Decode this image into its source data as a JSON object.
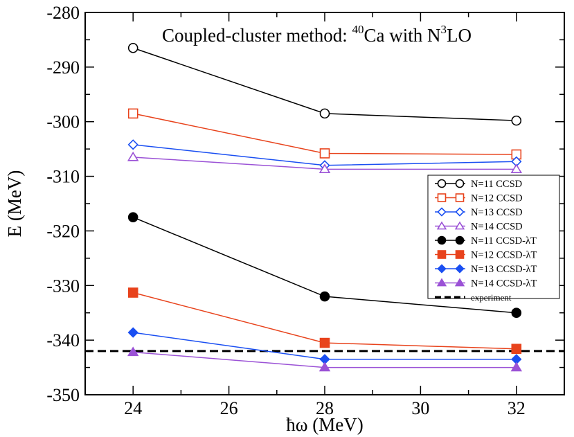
{
  "chart_data": {
    "type": "line",
    "title": "Coupled-cluster method: ",
    "title_isotope_mass": "40",
    "title_element": "Ca with N",
    "title_power": "3",
    "title_tail": "LO",
    "xlabel": "ħω (MeV)",
    "ylabel": "E (MeV)",
    "xlim": [
      23,
      33
    ],
    "ylim": [
      -350,
      -280
    ],
    "xticks": [
      24,
      26,
      28,
      30,
      32
    ],
    "yticks": [
      -350,
      -340,
      -330,
      -320,
      -310,
      -300,
      -290,
      -280
    ],
    "grid": false,
    "legend_position": "right-middle",
    "x": [
      24,
      28,
      32
    ],
    "series": [
      {
        "name": "N=11 CCSD",
        "values": [
          -286.5,
          -298.5,
          -299.8
        ],
        "color": "#000000",
        "marker": "circle",
        "filled": false
      },
      {
        "name": "N=12 CCSD",
        "values": [
          -298.5,
          -305.8,
          -306.0
        ],
        "color": "#e8431c",
        "marker": "square",
        "filled": false
      },
      {
        "name": "N=13 CCSD",
        "values": [
          -304.2,
          -308.0,
          -307.3
        ],
        "color": "#1a4ff2",
        "marker": "diamond",
        "filled": false
      },
      {
        "name": "N=14 CCSD",
        "values": [
          -306.5,
          -308.7,
          -308.7
        ],
        "color": "#9b52d6",
        "marker": "triangle",
        "filled": false
      },
      {
        "name": "N=11 CCSD-λT",
        "values": [
          -317.5,
          -332.0,
          -335.0
        ],
        "color": "#000000",
        "marker": "circle",
        "filled": true
      },
      {
        "name": "N=12 CCSD-λT",
        "values": [
          -331.3,
          -340.5,
          -341.6
        ],
        "color": "#e8431c",
        "marker": "square",
        "filled": true
      },
      {
        "name": "N=13 CCSD-λT",
        "values": [
          -338.6,
          -343.5,
          -343.5
        ],
        "color": "#1a4ff2",
        "marker": "diamond",
        "filled": true
      },
      {
        "name": "N=14 CCSD-λT",
        "values": [
          -342.2,
          -345.0,
          -345.0
        ],
        "color": "#9b52d6",
        "marker": "triangle",
        "filled": true
      }
    ],
    "reference_line": {
      "name": "experiment",
      "value": -342.0,
      "style": "dashed",
      "color": "#000000"
    }
  }
}
